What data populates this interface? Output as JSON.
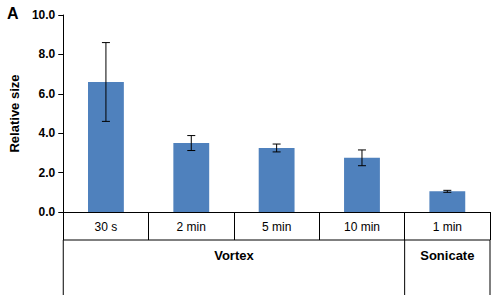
{
  "chart_data": {
    "type": "bar",
    "title": "A",
    "categories": [
      "30 s",
      "2 min",
      "5 min",
      "10 min",
      "1 min"
    ],
    "values": [
      6.6,
      3.5,
      3.25,
      2.75,
      1.05
    ],
    "errors": [
      2.0,
      0.38,
      0.2,
      0.4,
      0.05
    ],
    "groups": [
      {
        "label": "Vortex",
        "span": 4
      },
      {
        "label": "Sonicate",
        "span": 1
      }
    ],
    "y_label": "Relative size",
    "color": "#4f81bd",
    "ylim": [
      0,
      10
    ],
    "yticks": [
      {
        "value": 0,
        "label": "0.0"
      },
      {
        "value": 2,
        "label": "2.0"
      },
      {
        "value": 4,
        "label": "4.0"
      },
      {
        "value": 6,
        "label": "6.0"
      },
      {
        "value": 8,
        "label": "8.0"
      },
      {
        "value": 10,
        "label": "10.0"
      }
    ],
    "grid": false
  }
}
